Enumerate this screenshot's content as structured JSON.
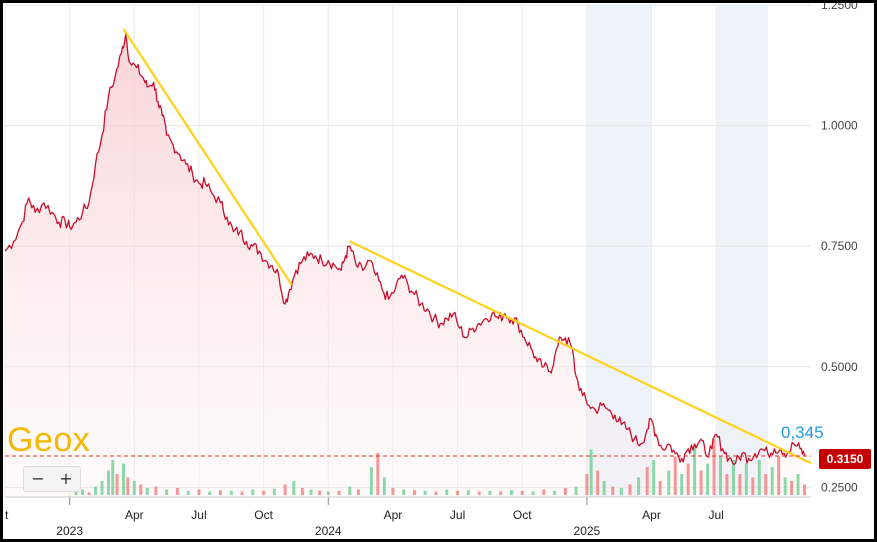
{
  "brand": "Geox",
  "zoom": {
    "minus": "−",
    "plus": "+"
  },
  "price_badge": "0.3150",
  "annotation": "0,345",
  "chart_data": {
    "type": "line",
    "title": "",
    "xlabel": "",
    "ylabel": "",
    "ylim": [
      0.23,
      1.25
    ],
    "yticks": [
      "1.2500",
      "1.0000",
      "0.7500",
      "0.5000",
      "0.2500"
    ],
    "ytick_values": [
      1.25,
      1.0,
      0.75,
      0.5,
      0.25
    ],
    "xticks": [
      {
        "label": "t",
        "month": -3
      },
      {
        "label": "Apr",
        "month": 3
      },
      {
        "label": "Jul",
        "month": 6
      },
      {
        "label": "Oct",
        "month": 9
      },
      {
        "label": "Apr",
        "month": 15
      },
      {
        "label": "Jul",
        "month": 18
      },
      {
        "label": "Oct",
        "month": 21
      },
      {
        "label": "Apr",
        "month": 27
      },
      {
        "label": "Jul",
        "month": 30
      }
    ],
    "year_ticks": [
      {
        "label": "2023",
        "month": 0
      },
      {
        "label": "2024",
        "month": 12
      },
      {
        "label": "2025",
        "month": 24
      }
    ],
    "shaded_ranges": [
      [
        24,
        27
      ],
      [
        30,
        32.4
      ]
    ],
    "price_line": 0.315,
    "colors": {
      "line": "#c8102e",
      "trend": "#ffd11a",
      "shade": "#eef3f9",
      "vol_up": "#6fcf97",
      "vol_down": "#f08080"
    },
    "series": [
      {
        "values": [
          [
            -3.0,
            0.74
          ],
          [
            -2.6,
            0.76
          ],
          [
            -2.2,
            0.8
          ],
          [
            -1.9,
            0.85
          ],
          [
            -1.6,
            0.82
          ],
          [
            -1.2,
            0.84
          ],
          [
            -0.8,
            0.82
          ],
          [
            -0.5,
            0.8
          ],
          [
            -0.2,
            0.8
          ],
          [
            0.0,
            0.79
          ],
          [
            0.3,
            0.8
          ],
          [
            0.6,
            0.82
          ],
          [
            0.9,
            0.84
          ],
          [
            1.2,
            0.92
          ],
          [
            1.5,
            0.98
          ],
          [
            1.8,
            1.06
          ],
          [
            2.1,
            1.1
          ],
          [
            2.4,
            1.15
          ],
          [
            2.6,
            1.19
          ],
          [
            2.8,
            1.13
          ],
          [
            3.1,
            1.12
          ],
          [
            3.4,
            1.1
          ],
          [
            3.6,
            1.08
          ],
          [
            3.9,
            1.09
          ],
          [
            4.1,
            1.05
          ],
          [
            4.3,
            1.02
          ],
          [
            4.5,
            0.98
          ],
          [
            4.8,
            0.96
          ],
          [
            5.1,
            0.94
          ],
          [
            5.4,
            0.92
          ],
          [
            5.7,
            0.9
          ],
          [
            6.0,
            0.88
          ],
          [
            6.3,
            0.88
          ],
          [
            6.6,
            0.86
          ],
          [
            7.0,
            0.84
          ],
          [
            7.3,
            0.81
          ],
          [
            7.6,
            0.78
          ],
          [
            7.9,
            0.78
          ],
          [
            8.2,
            0.76
          ],
          [
            8.5,
            0.75
          ],
          [
            8.8,
            0.74
          ],
          [
            9.1,
            0.72
          ],
          [
            9.4,
            0.71
          ],
          [
            9.7,
            0.69
          ],
          [
            10.0,
            0.63
          ],
          [
            10.2,
            0.66
          ],
          [
            10.5,
            0.7
          ],
          [
            10.8,
            0.72
          ],
          [
            11.1,
            0.73
          ],
          [
            11.4,
            0.73
          ],
          [
            11.7,
            0.72
          ],
          [
            12.0,
            0.72
          ],
          [
            12.3,
            0.71
          ],
          [
            12.6,
            0.7
          ],
          [
            12.8,
            0.73
          ],
          [
            13.0,
            0.75
          ],
          [
            13.3,
            0.71
          ],
          [
            13.6,
            0.7
          ],
          [
            13.9,
            0.72
          ],
          [
            14.2,
            0.69
          ],
          [
            14.5,
            0.66
          ],
          [
            14.8,
            0.64
          ],
          [
            15.1,
            0.66
          ],
          [
            15.4,
            0.69
          ],
          [
            15.7,
            0.67
          ],
          [
            16.0,
            0.65
          ],
          [
            16.3,
            0.63
          ],
          [
            16.6,
            0.62
          ],
          [
            16.9,
            0.6
          ],
          [
            17.2,
            0.59
          ],
          [
            17.5,
            0.6
          ],
          [
            17.8,
            0.61
          ],
          [
            18.1,
            0.58
          ],
          [
            18.4,
            0.56
          ],
          [
            18.7,
            0.58
          ],
          [
            19.0,
            0.59
          ],
          [
            19.3,
            0.6
          ],
          [
            19.6,
            0.61
          ],
          [
            19.9,
            0.6
          ],
          [
            20.2,
            0.61
          ],
          [
            20.5,
            0.6
          ],
          [
            20.8,
            0.59
          ],
          [
            21.1,
            0.56
          ],
          [
            21.4,
            0.54
          ],
          [
            21.7,
            0.51
          ],
          [
            22.0,
            0.5
          ],
          [
            22.3,
            0.49
          ],
          [
            22.5,
            0.52
          ],
          [
            22.8,
            0.56
          ],
          [
            23.0,
            0.56
          ],
          [
            23.3,
            0.54
          ],
          [
            23.5,
            0.48
          ],
          [
            23.8,
            0.44
          ],
          [
            24.1,
            0.42
          ],
          [
            24.4,
            0.41
          ],
          [
            24.7,
            0.42
          ],
          [
            25.0,
            0.41
          ],
          [
            25.3,
            0.4
          ],
          [
            25.6,
            0.38
          ],
          [
            25.9,
            0.37
          ],
          [
            26.2,
            0.35
          ],
          [
            26.5,
            0.34
          ],
          [
            26.8,
            0.37
          ],
          [
            27.0,
            0.39
          ],
          [
            27.2,
            0.36
          ],
          [
            27.5,
            0.33
          ],
          [
            27.8,
            0.34
          ],
          [
            28.1,
            0.32
          ],
          [
            28.4,
            0.31
          ],
          [
            28.7,
            0.33
          ],
          [
            29.0,
            0.34
          ],
          [
            29.3,
            0.35
          ],
          [
            29.5,
            0.32
          ],
          [
            29.8,
            0.33
          ],
          [
            30.0,
            0.36
          ],
          [
            30.3,
            0.33
          ],
          [
            30.6,
            0.31
          ],
          [
            30.9,
            0.3
          ],
          [
            31.2,
            0.32
          ],
          [
            31.5,
            0.31
          ],
          [
            31.8,
            0.32
          ],
          [
            32.1,
            0.33
          ],
          [
            32.4,
            0.32
          ],
          [
            32.7,
            0.33
          ],
          [
            33.0,
            0.33
          ],
          [
            33.3,
            0.32
          ],
          [
            33.6,
            0.34
          ],
          [
            33.9,
            0.33
          ],
          [
            34.1,
            0.315
          ]
        ]
      }
    ],
    "trendlines": [
      [
        [
          2.5,
          1.2
        ],
        [
          10.3,
          0.67
        ]
      ],
      [
        [
          13.0,
          0.76
        ],
        [
          34.4,
          0.3
        ]
      ]
    ],
    "volume_note": "relative bar heights",
    "volume": [
      [
        0.3,
        0.05,
        1
      ],
      [
        0.6,
        0.08,
        1
      ],
      [
        0.9,
        0.04,
        0
      ],
      [
        1.2,
        0.12,
        1
      ],
      [
        1.5,
        0.2,
        1
      ],
      [
        1.8,
        0.35,
        1
      ],
      [
        2.0,
        0.5,
        1
      ],
      [
        2.2,
        0.3,
        0
      ],
      [
        2.5,
        0.45,
        1
      ],
      [
        2.7,
        0.25,
        0
      ],
      [
        3.0,
        0.2,
        1
      ],
      [
        3.3,
        0.15,
        0
      ],
      [
        3.6,
        0.1,
        1
      ],
      [
        4.0,
        0.12,
        0
      ],
      [
        4.5,
        0.08,
        1
      ],
      [
        5.0,
        0.1,
        0
      ],
      [
        5.5,
        0.06,
        1
      ],
      [
        6.0,
        0.08,
        0
      ],
      [
        6.5,
        0.05,
        1
      ],
      [
        7.0,
        0.07,
        0
      ],
      [
        7.5,
        0.06,
        1
      ],
      [
        8.0,
        0.05,
        0
      ],
      [
        8.5,
        0.08,
        1
      ],
      [
        9.0,
        0.06,
        0
      ],
      [
        9.5,
        0.09,
        1
      ],
      [
        10.0,
        0.15,
        0
      ],
      [
        10.4,
        0.2,
        1
      ],
      [
        10.8,
        0.1,
        0
      ],
      [
        11.2,
        0.08,
        1
      ],
      [
        11.6,
        0.06,
        0
      ],
      [
        12.0,
        0.05,
        1
      ],
      [
        12.5,
        0.06,
        0
      ],
      [
        13.0,
        0.12,
        1
      ],
      [
        13.4,
        0.08,
        0
      ],
      [
        14.0,
        0.4,
        1
      ],
      [
        14.3,
        0.6,
        0
      ],
      [
        14.6,
        0.25,
        1
      ],
      [
        15.0,
        0.1,
        0
      ],
      [
        15.5,
        0.08,
        1
      ],
      [
        16.0,
        0.07,
        0
      ],
      [
        16.5,
        0.06,
        1
      ],
      [
        17.0,
        0.05,
        0
      ],
      [
        17.5,
        0.08,
        1
      ],
      [
        18.0,
        0.06,
        0
      ],
      [
        18.5,
        0.07,
        1
      ],
      [
        19.0,
        0.05,
        0
      ],
      [
        19.5,
        0.06,
        1
      ],
      [
        20.0,
        0.05,
        0
      ],
      [
        20.5,
        0.07,
        1
      ],
      [
        21.0,
        0.06,
        0
      ],
      [
        21.5,
        0.05,
        1
      ],
      [
        22.0,
        0.08,
        0
      ],
      [
        22.5,
        0.06,
        1
      ],
      [
        23.0,
        0.1,
        0
      ],
      [
        23.5,
        0.12,
        1
      ],
      [
        24.0,
        0.3,
        0
      ],
      [
        24.2,
        0.65,
        1
      ],
      [
        24.5,
        0.35,
        0
      ],
      [
        24.8,
        0.2,
        1
      ],
      [
        25.2,
        0.12,
        0
      ],
      [
        25.6,
        0.1,
        1
      ],
      [
        26.0,
        0.15,
        0
      ],
      [
        26.4,
        0.25,
        1
      ],
      [
        26.8,
        0.4,
        0
      ],
      [
        27.1,
        0.5,
        1
      ],
      [
        27.4,
        0.2,
        0
      ],
      [
        27.8,
        0.35,
        1
      ],
      [
        28.1,
        0.55,
        0
      ],
      [
        28.4,
        0.3,
        1
      ],
      [
        28.7,
        0.45,
        0
      ],
      [
        29.0,
        0.7,
        1
      ],
      [
        29.3,
        0.35,
        0
      ],
      [
        29.6,
        0.45,
        1
      ],
      [
        29.9,
        0.8,
        0
      ],
      [
        30.2,
        0.55,
        1
      ],
      [
        30.5,
        0.3,
        0
      ],
      [
        30.8,
        0.5,
        1
      ],
      [
        31.1,
        0.3,
        0
      ],
      [
        31.4,
        0.45,
        1
      ],
      [
        31.7,
        0.25,
        0
      ],
      [
        32.0,
        0.5,
        1
      ],
      [
        32.3,
        0.3,
        0
      ],
      [
        32.6,
        0.4,
        1
      ],
      [
        32.9,
        0.55,
        0
      ],
      [
        33.2,
        0.25,
        1
      ],
      [
        33.5,
        0.2,
        0
      ],
      [
        33.8,
        0.3,
        1
      ],
      [
        34.1,
        0.15,
        0
      ]
    ]
  }
}
